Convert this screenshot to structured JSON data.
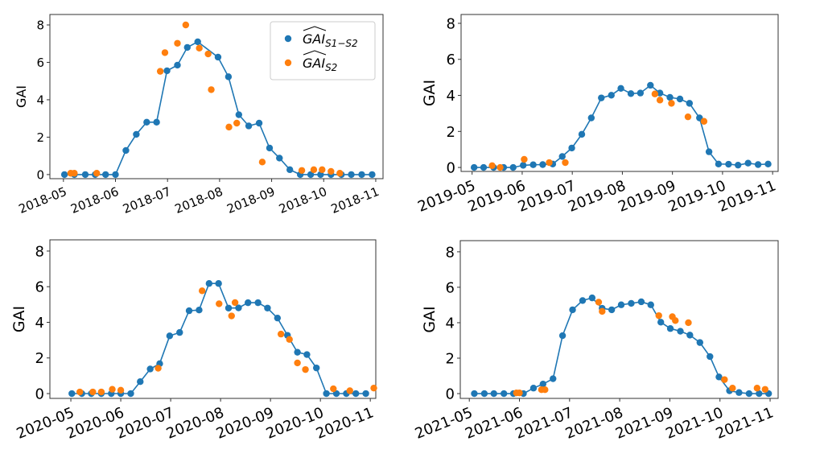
{
  "chart_data": [
    {
      "type": "line",
      "ylabel": "GAI",
      "x_unit": "month (decimal, within year)",
      "xlim": [
        4.74,
        11.14
      ],
      "ylim": [
        -0.22,
        8.56
      ],
      "yticks": [
        0,
        2,
        4,
        6,
        8
      ],
      "xticks": [
        5,
        6,
        7,
        8,
        9,
        10,
        11
      ],
      "xtick_labels": [
        "2018-05",
        "2018-06",
        "2018-07",
        "2018-08",
        "2018-09",
        "2018-10",
        "2018-11"
      ],
      "legend": {
        "placement": "top-right",
        "entries": [
          {
            "main": "GAI",
            "sub": "S1−S2"
          },
          {
            "main": "GAI",
            "sub": "S2"
          }
        ]
      },
      "series": [
        {
          "name": "GAI S1-S2",
          "color": "#1f77b4",
          "style": "line+markers",
          "x": [
            5.02,
            5.21,
            5.42,
            5.61,
            5.81,
            6.0,
            6.2,
            6.4,
            6.6,
            6.79,
            6.99,
            7.19,
            7.38,
            7.58,
            7.97,
            8.17,
            8.37,
            8.56,
            8.76,
            8.96,
            9.15,
            9.35,
            9.55,
            9.75,
            9.94,
            10.14,
            10.34,
            10.53,
            10.73,
            10.93
          ],
          "y": [
            0,
            0,
            0,
            0,
            0,
            0,
            1.29,
            2.15,
            2.8,
            2.8,
            5.55,
            5.85,
            6.8,
            7.1,
            6.28,
            5.23,
            3.2,
            2.6,
            2.75,
            1.42,
            0.88,
            0.26,
            0,
            0,
            0,
            0,
            0,
            0,
            0,
            0
          ]
        },
        {
          "name": "GAI S2",
          "color": "#ff7f0e",
          "style": "markers",
          "x": [
            5.14,
            5.21,
            5.64,
            6.86,
            6.95,
            7.19,
            7.35,
            7.61,
            7.78,
            7.84,
            8.18,
            8.33,
            8.82,
            9.58,
            9.81,
            9.97,
            10.14,
            10.31
          ],
          "y": [
            0.07,
            0.07,
            0.07,
            5.52,
            6.52,
            7.02,
            8.0,
            6.76,
            6.45,
            4.54,
            2.54,
            2.75,
            0.67,
            0.22,
            0.26,
            0.26,
            0.17,
            0.07
          ]
        }
      ]
    },
    {
      "type": "line",
      "ylabel": "GAI",
      "xlim": [
        4.78,
        11.11
      ],
      "ylim": [
        -0.22,
        8.49
      ],
      "yticks": [
        0,
        2,
        4,
        6,
        8
      ],
      "xticks": [
        5,
        6,
        7,
        8,
        9,
        10,
        11
      ],
      "xtick_labels": [
        "2019-05",
        "2019-06",
        "2019-07",
        "2019-08",
        "2019-09",
        "2019-10",
        "2019-11"
      ],
      "series": [
        {
          "name": "GAI S1-S2",
          "color": "#1f77b4",
          "style": "line+markers",
          "x": [
            5.04,
            5.23,
            5.43,
            5.63,
            5.82,
            6.02,
            6.22,
            6.41,
            6.61,
            6.8,
            6.99,
            7.19,
            7.38,
            7.58,
            7.78,
            7.97,
            8.17,
            8.36,
            8.56,
            8.75,
            8.95,
            9.15,
            9.34,
            9.54,
            9.73,
            9.92,
            10.12,
            10.31,
            10.51,
            10.71,
            10.91
          ],
          "y": [
            0,
            0,
            0,
            0,
            0,
            0.12,
            0.15,
            0.16,
            0.19,
            0.61,
            1.08,
            1.84,
            2.75,
            3.86,
            4.01,
            4.39,
            4.1,
            4.13,
            4.56,
            4.13,
            3.89,
            3.8,
            3.56,
            2.75,
            0.87,
            0.19,
            0.18,
            0.13,
            0.24,
            0.16,
            0.19
          ]
        },
        {
          "name": "GAI S2",
          "color": "#ff7f0e",
          "style": "markers",
          "x": [
            5.4,
            5.56,
            6.04,
            6.54,
            6.86,
            8.65,
            8.75,
            8.98,
            9.31,
            9.63
          ],
          "y": [
            0.1,
            0,
            0.45,
            0.27,
            0.27,
            4.08,
            3.74,
            3.56,
            2.81,
            2.56
          ]
        }
      ]
    },
    {
      "type": "line",
      "ylabel": "GAI",
      "xlim": [
        4.58,
        11.11
      ],
      "ylim": [
        -0.27,
        8.63
      ],
      "yticks": [
        0,
        2,
        4,
        6,
        8
      ],
      "xticks": [
        5,
        6,
        7,
        8,
        9,
        10,
        11
      ],
      "xtick_labels": [
        "2020-05",
        "2020-06",
        "2020-07",
        "2020-08",
        "2020-09",
        "2020-10",
        "2020-11"
      ],
      "series": [
        {
          "name": "GAI S1-S2",
          "color": "#1f77b4",
          "style": "line+markers",
          "x": [
            5.02,
            5.22,
            5.41,
            5.61,
            5.81,
            6.0,
            6.2,
            6.39,
            6.59,
            6.78,
            6.98,
            7.18,
            7.37,
            7.57,
            7.77,
            7.96,
            8.16,
            8.36,
            8.55,
            8.75,
            8.94,
            9.14,
            9.34,
            9.54,
            9.73,
            9.92,
            10.12,
            10.32,
            10.52,
            10.71,
            10.91
          ],
          "y": [
            0,
            0,
            0,
            0,
            0,
            0,
            0,
            0.67,
            1.38,
            1.68,
            3.24,
            3.43,
            4.65,
            4.69,
            6.18,
            6.18,
            4.8,
            4.81,
            5.1,
            5.1,
            4.8,
            4.24,
            3.27,
            2.32,
            2.19,
            1.44,
            0,
            0,
            0,
            0,
            0
          ]
        },
        {
          "name": "GAI S2",
          "color": "#ff7f0e",
          "style": "markers",
          "x": [
            5.18,
            5.44,
            5.61,
            5.83,
            6.0,
            6.75,
            7.63,
            7.97,
            8.22,
            8.29,
            9.21,
            9.38,
            9.54,
            9.7,
            10.26,
            10.59,
            11.07
          ],
          "y": [
            0.09,
            0.09,
            0.09,
            0.24,
            0.19,
            1.42,
            5.77,
            5.04,
            4.36,
            5.11,
            3.34,
            3.04,
            1.72,
            1.35,
            0.27,
            0.16,
            0.31
          ]
        }
      ]
    },
    {
      "type": "line",
      "ylabel": "GAI",
      "xlim": [
        4.82,
        11.16
      ],
      "ylim": [
        -0.27,
        8.63
      ],
      "yticks": [
        0,
        2,
        4,
        6,
        8
      ],
      "xticks": [
        5,
        6,
        7,
        8,
        9,
        10,
        11
      ],
      "xtick_labels": [
        "2021-05",
        "2021-06",
        "2021-07",
        "2021-08",
        "2021-09",
        "2021-10",
        "2021-11"
      ],
      "series": [
        {
          "name": "GAI S1-S2",
          "color": "#1f77b4",
          "style": "line+markers",
          "x": [
            5.1,
            5.3,
            5.49,
            5.69,
            5.88,
            6.08,
            6.28,
            6.47,
            6.67,
            6.86,
            7.06,
            7.26,
            7.45,
            7.65,
            7.84,
            8.03,
            8.23,
            8.43,
            8.62,
            8.82,
            9.01,
            9.21,
            9.4,
            9.6,
            9.8,
            9.98,
            10.19,
            10.38,
            10.58,
            10.78,
            10.97
          ],
          "y": [
            0,
            0,
            0,
            0,
            0,
            0,
            0.31,
            0.54,
            0.84,
            3.27,
            4.73,
            5.25,
            5.4,
            4.81,
            4.73,
            5.01,
            5.09,
            5.18,
            5.01,
            4.03,
            3.67,
            3.52,
            3.3,
            2.88,
            2.09,
            0.94,
            0.16,
            0.06,
            0,
            0,
            0
          ]
        },
        {
          "name": "GAI S2",
          "color": "#ff7f0e",
          "style": "markers",
          "x": [
            5.94,
            6.0,
            6.44,
            6.51,
            7.58,
            7.65,
            8.78,
            9.05,
            9.11,
            9.37,
            10.09,
            10.25,
            10.74,
            10.9
          ],
          "y": [
            0.04,
            0.04,
            0.22,
            0.22,
            5.16,
            4.64,
            4.4,
            4.34,
            4.12,
            4.0,
            0.79,
            0.31,
            0.31,
            0.24
          ]
        }
      ]
    }
  ]
}
